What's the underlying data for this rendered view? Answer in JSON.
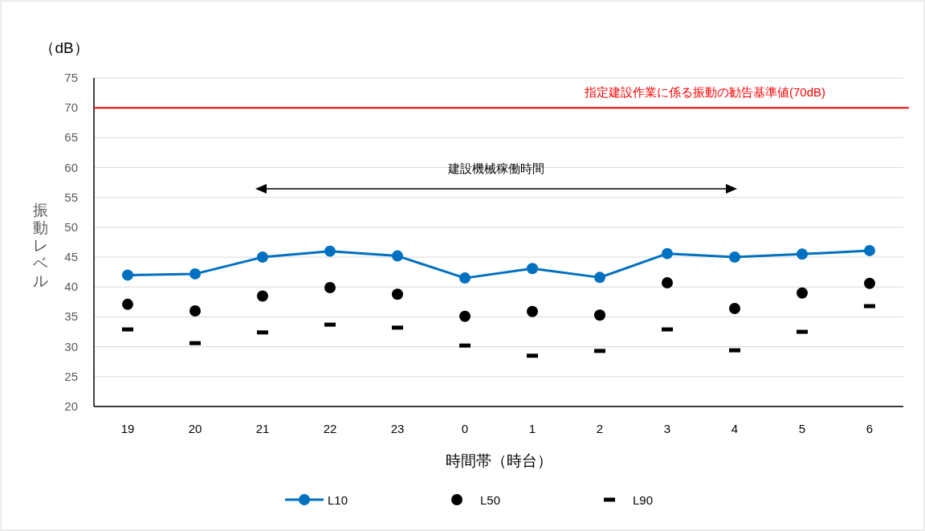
{
  "chart_data": {
    "type": "line",
    "xlabel": "時間帯（時台）",
    "ylabel": "振動レベル",
    "annotations": [
      "（dB）",
      "建設機械稼働時間"
    ],
    "categories": [
      "19",
      "20",
      "21",
      "22",
      "23",
      "0",
      "1",
      "2",
      "3",
      "4",
      "5",
      "6"
    ],
    "series": [
      {
        "name": "L10",
        "type": "line",
        "marker": "circle",
        "color": "#0070c0",
        "values": [
          42.0,
          42.2,
          45.0,
          46.0,
          45.2,
          41.5,
          43.1,
          41.6,
          45.6,
          45.0,
          45.5,
          46.1
        ]
      },
      {
        "name": "L50",
        "type": "scatter",
        "marker": "circle",
        "color": "#000000",
        "values": [
          37.1,
          36.0,
          38.5,
          39.9,
          38.8,
          35.1,
          35.9,
          35.3,
          40.7,
          36.4,
          39.0,
          40.6
        ]
      },
      {
        "name": "L90",
        "type": "scatter",
        "marker": "square",
        "color": "#000000",
        "values": [
          32.9,
          30.6,
          32.4,
          33.7,
          33.2,
          30.2,
          28.5,
          29.3,
          32.9,
          29.4,
          32.5,
          36.8
        ]
      }
    ],
    "ylim": [
      20,
      75
    ],
    "yticks": [
      20,
      25,
      30,
      35,
      40,
      45,
      50,
      55,
      60,
      65,
      70,
      75
    ],
    "grid": "y",
    "legend": "bottom",
    "ref_lines": [
      {
        "axis": "y",
        "value": 70,
        "label": "指定建設作業に係る振動の勧告基準値(70dB)",
        "color": "#ff0000"
      }
    ]
  }
}
